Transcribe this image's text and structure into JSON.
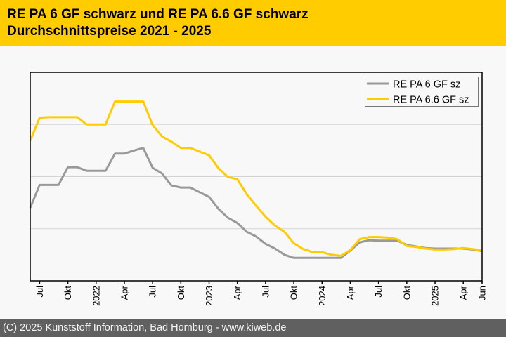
{
  "header": {
    "title_line1": "RE PA 6 GF schwarz und RE PA 6.6 GF schwarz",
    "title_line2": "Durchschnittspreise 2021 - 2025"
  },
  "footer": {
    "copyright": "(C) 2025 Kunststoff Information, Bad Homburg - www.kiweb.de"
  },
  "colors": {
    "header_bg": "#ffcc00",
    "footer_bg": "#606060",
    "series_pa6": "#999999",
    "series_pa66": "#ffcc00"
  },
  "chart_data": {
    "type": "line",
    "title": "RE PA 6 GF schwarz und RE PA 6.6 GF schwarz Durchschnittspreise 2021 - 2025",
    "xlabel": "",
    "ylabel": "",
    "y_tick_labels_shown": false,
    "ylim": [
      0,
      4
    ],
    "y_grid_step": 1,
    "grid": true,
    "legend_position": "top-right",
    "x": [
      "2021-06",
      "2021-07",
      "2021-08",
      "2021-09",
      "2021-10",
      "2021-11",
      "2021-12",
      "2022-01",
      "2022-02",
      "2022-03",
      "2022-04",
      "2022-05",
      "2022-06",
      "2022-07",
      "2022-08",
      "2022-09",
      "2022-10",
      "2022-11",
      "2022-12",
      "2023-01",
      "2023-02",
      "2023-03",
      "2023-04",
      "2023-05",
      "2023-06",
      "2023-07",
      "2023-08",
      "2023-09",
      "2023-10",
      "2023-11",
      "2023-12",
      "2024-01",
      "2024-02",
      "2024-03",
      "2024-04",
      "2024-05",
      "2024-06",
      "2024-07",
      "2024-08",
      "2024-09",
      "2024-10",
      "2024-11",
      "2024-12",
      "2025-01",
      "2025-02",
      "2025-03",
      "2025-04",
      "2025-05",
      "2025-06"
    ],
    "x_ticks": [
      {
        "index": 1,
        "label": "Jul"
      },
      {
        "index": 4,
        "label": "Okt"
      },
      {
        "index": 7,
        "label": "2022"
      },
      {
        "index": 10,
        "label": "Apr"
      },
      {
        "index": 13,
        "label": "Jul"
      },
      {
        "index": 16,
        "label": "Okt"
      },
      {
        "index": 19,
        "label": "2023"
      },
      {
        "index": 22,
        "label": "Apr"
      },
      {
        "index": 25,
        "label": "Jul"
      },
      {
        "index": 28,
        "label": "Okt"
      },
      {
        "index": 31,
        "label": "2024"
      },
      {
        "index": 34,
        "label": "Apr"
      },
      {
        "index": 37,
        "label": "Jul"
      },
      {
        "index": 40,
        "label": "Okt"
      },
      {
        "index": 43,
        "label": "2025"
      },
      {
        "index": 46,
        "label": "Apr"
      },
      {
        "index": 48,
        "label": "Jun"
      }
    ],
    "series": [
      {
        "name": "RE PA 6 GF sz",
        "color": "#999999",
        "values": [
          1.4,
          1.84,
          1.84,
          1.84,
          2.18,
          2.18,
          2.11,
          2.11,
          2.11,
          2.44,
          2.44,
          2.5,
          2.55,
          2.17,
          2.06,
          1.83,
          1.79,
          1.79,
          1.7,
          1.61,
          1.38,
          1.21,
          1.11,
          0.94,
          0.85,
          0.71,
          0.62,
          0.5,
          0.44,
          0.44,
          0.44,
          0.44,
          0.44,
          0.44,
          0.58,
          0.74,
          0.78,
          0.77,
          0.77,
          0.77,
          0.69,
          0.66,
          0.63,
          0.62,
          0.62,
          0.62,
          0.62,
          0.6,
          0.57
        ]
      },
      {
        "name": "RE PA 6.6 GF sz",
        "color": "#ffcc00",
        "values": [
          2.69,
          3.13,
          3.14,
          3.14,
          3.14,
          3.14,
          3.0,
          3.0,
          3.0,
          3.44,
          3.44,
          3.44,
          3.44,
          2.99,
          2.77,
          2.67,
          2.55,
          2.55,
          2.48,
          2.41,
          2.16,
          1.99,
          1.95,
          1.66,
          1.44,
          1.23,
          1.06,
          0.94,
          0.72,
          0.61,
          0.55,
          0.55,
          0.5,
          0.48,
          0.59,
          0.8,
          0.84,
          0.84,
          0.83,
          0.8,
          0.67,
          0.65,
          0.62,
          0.6,
          0.6,
          0.61,
          0.63,
          0.61,
          0.59
        ]
      }
    ]
  }
}
